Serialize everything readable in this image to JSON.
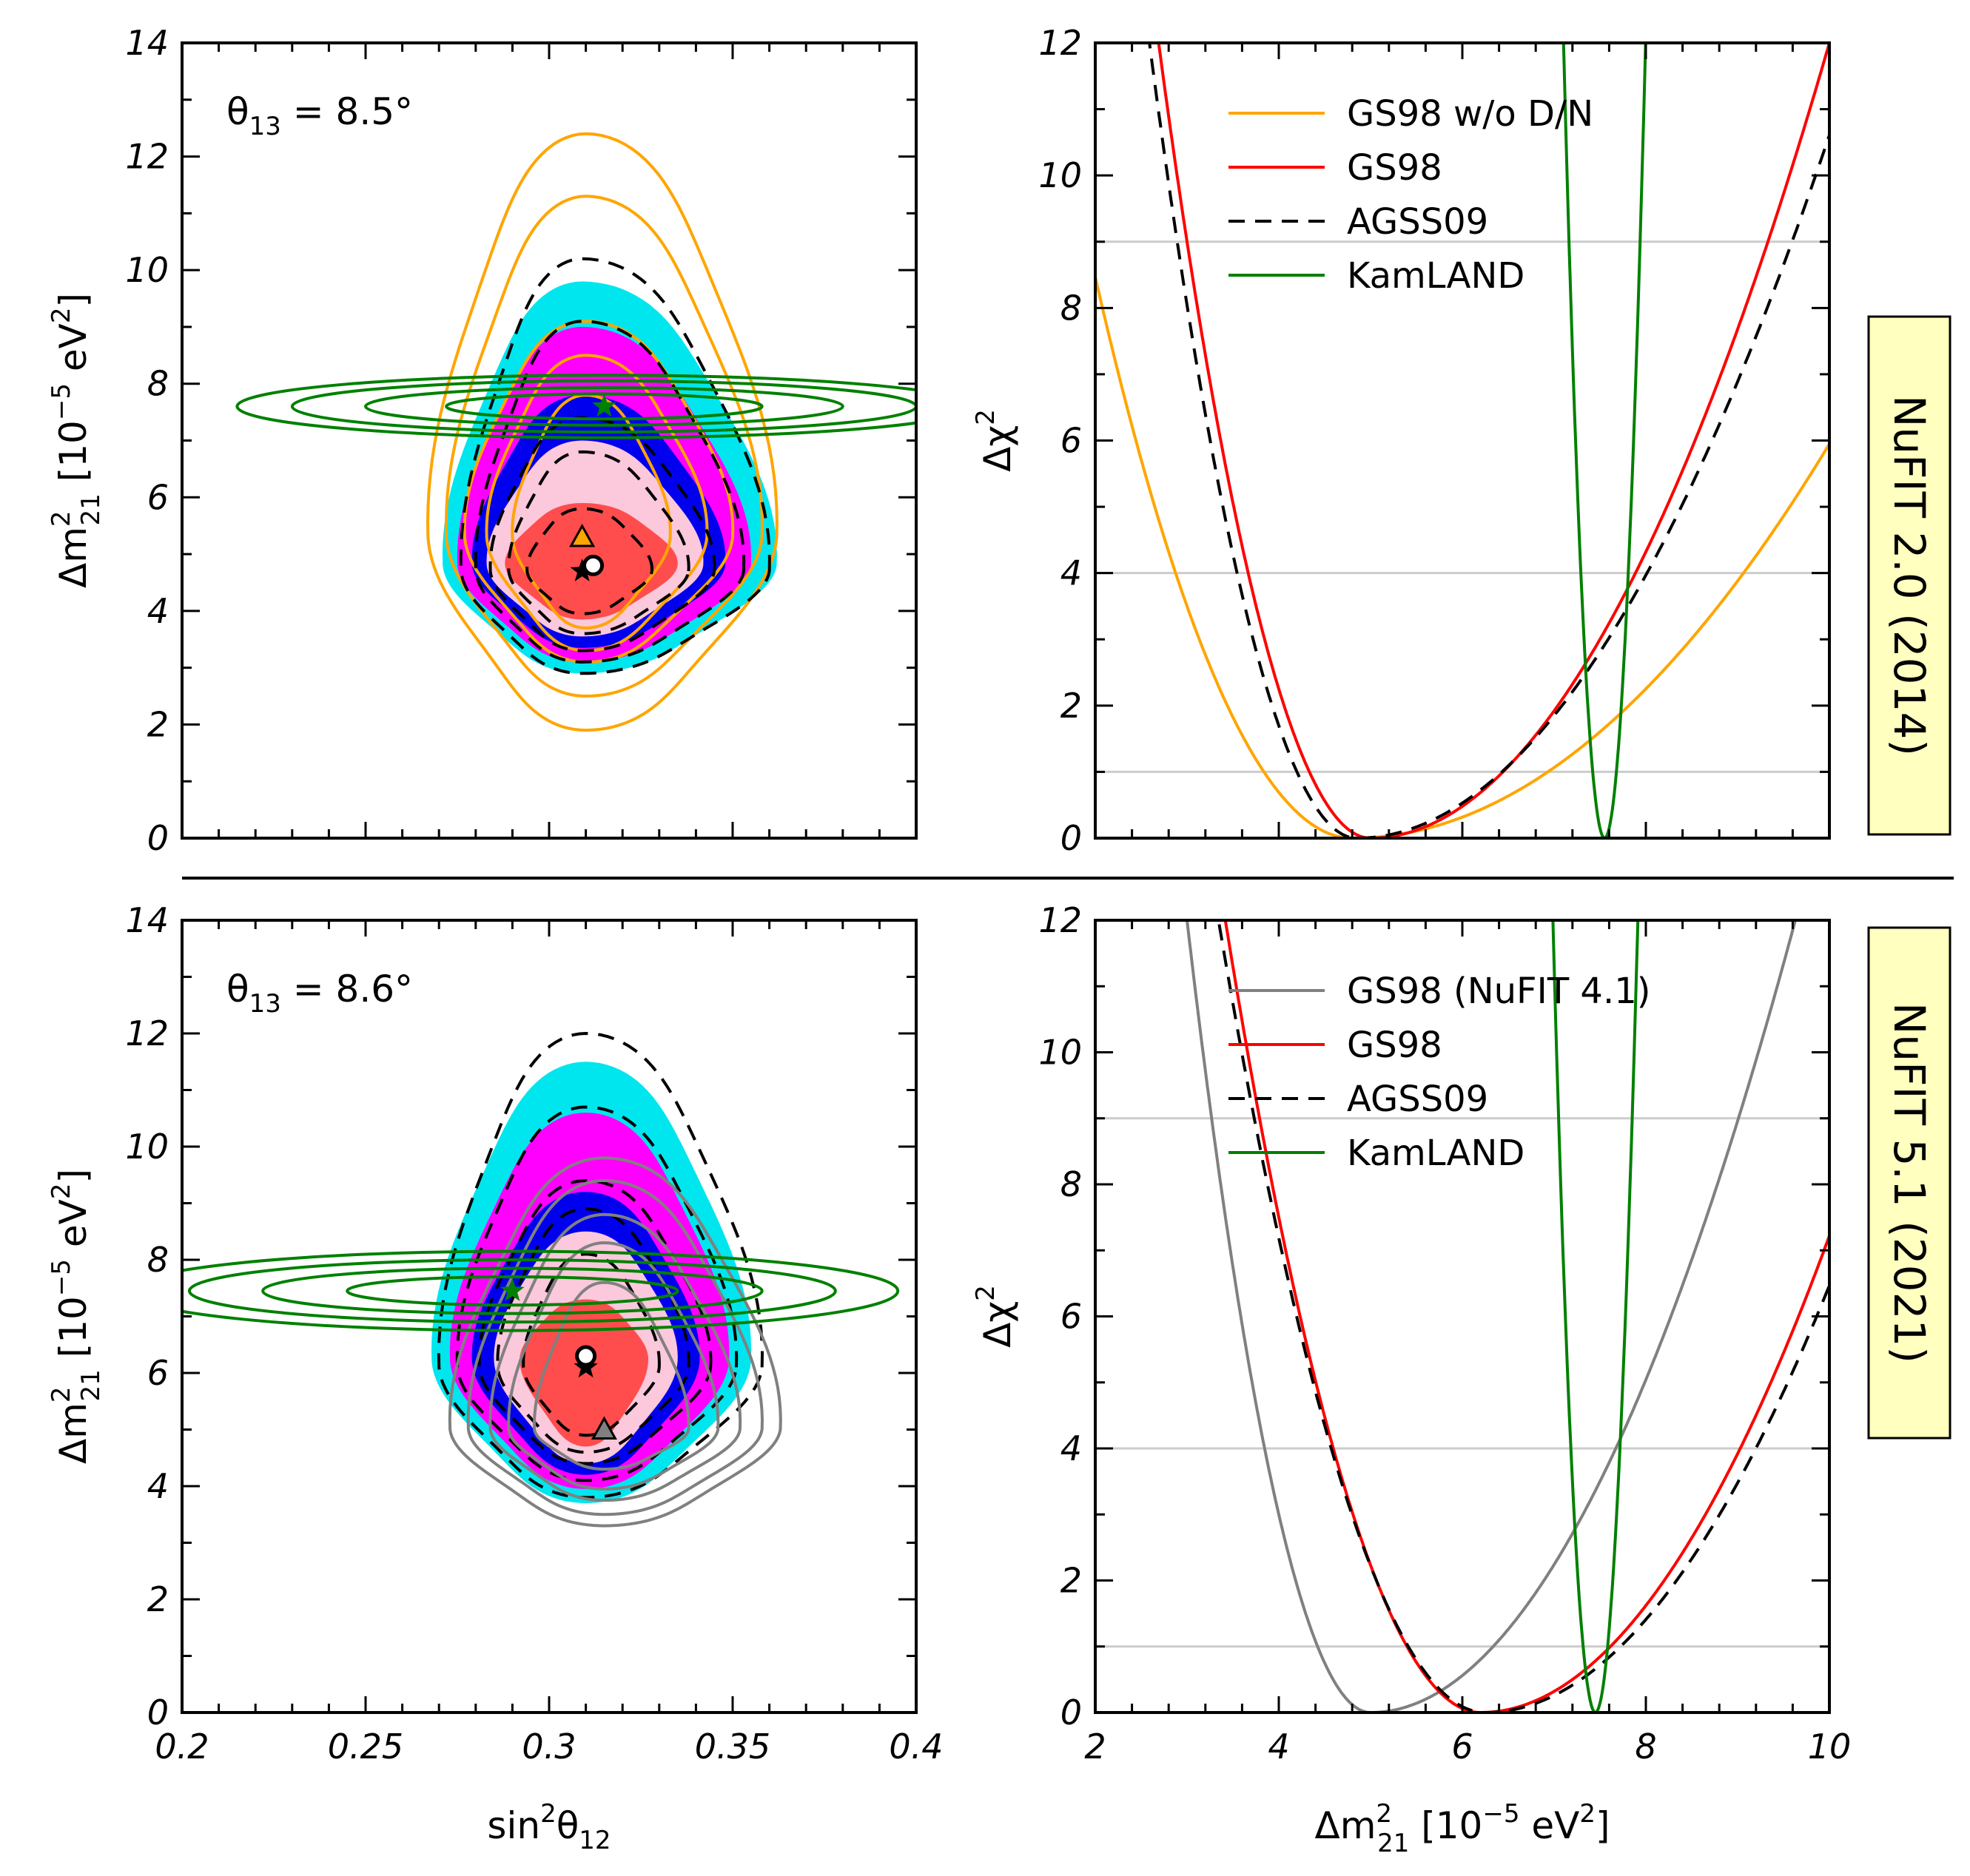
{
  "chart_data": [
    {
      "id": "contour-2014",
      "type": "contour",
      "annotation": {
        "theta": "θ",
        "sub": "13",
        "text": " = 8.5°"
      },
      "xlim": [
        0.2,
        0.4
      ],
      "ylim": [
        0,
        14
      ],
      "xticks": [
        0.2,
        0.25,
        0.3,
        0.35,
        0.4
      ],
      "yticks": [
        0,
        2,
        4,
        6,
        8,
        10,
        12,
        14
      ],
      "xlabel": {
        "pre": "sin",
        "sup": "2",
        "theta": "θ",
        "sub": "12"
      },
      "ylabel": {
        "pre": "Δm",
        "sup": "2",
        "sub": "21",
        "post": " [10",
        "sup2": "−5",
        "post2": " eV",
        "sup3": "2",
        "end": "]"
      },
      "fill_colors": [
        "#00e6ee",
        "#ff00ff",
        "#0000ee",
        "#fbc8dc",
        "#ff4d4d"
      ],
      "solar_region": {
        "center": [
          0.309,
          4.8
        ],
        "fill_top": [
          9.8,
          9.0,
          7.8,
          7.0,
          5.9
        ],
        "fill_bottom": [
          2.9,
          3.1,
          3.35,
          3.55,
          3.85
        ],
        "fill_left": [
          0.271,
          0.275,
          0.279,
          0.283,
          0.288
        ],
        "fill_right": [
          0.362,
          0.355,
          0.348,
          0.342,
          0.335
        ]
      },
      "series": [
        {
          "name": "GS98 w/o D/N",
          "color": "#ffa500",
          "style": "solid",
          "center": [
            0.31,
            5.3
          ],
          "contours": [
            {
              "top": 12.4,
              "bottom": 1.9,
              "left": 0.267,
              "right": 0.362
            },
            {
              "top": 11.3,
              "bottom": 2.5,
              "left": 0.272,
              "right": 0.358
            },
            {
              "top": 9.1,
              "bottom": 3.1,
              "left": 0.277,
              "right": 0.35
            },
            {
              "top": 8.5,
              "bottom": 3.3,
              "left": 0.283,
              "right": 0.343
            },
            {
              "top": 7.8,
              "bottom": 3.7,
              "left": 0.29,
              "right": 0.333
            }
          ],
          "bestfit_marker": {
            "type": "triangle",
            "x": 0.309,
            "y": 5.3
          }
        },
        {
          "name": "AGSS09",
          "color": "#000000",
          "style": "dashed",
          "center": [
            0.309,
            4.7
          ],
          "contours": [
            {
              "top": 10.2,
              "bottom": 2.9,
              "left": 0.276,
              "right": 0.36
            },
            {
              "top": 9.1,
              "bottom": 3.1,
              "left": 0.28,
              "right": 0.353
            },
            {
              "top": 7.4,
              "bottom": 3.3,
              "left": 0.284,
              "right": 0.345
            },
            {
              "top": 6.8,
              "bottom": 3.6,
              "left": 0.289,
              "right": 0.338
            },
            {
              "top": 5.8,
              "bottom": 3.95,
              "left": 0.294,
              "right": 0.328
            }
          ],
          "bestfit_marker": {
            "type": "star",
            "x": 0.309,
            "y": 4.7
          }
        },
        {
          "name": "KamLAND",
          "color": "#008000",
          "style": "solid",
          "center": [
            0.315,
            7.6
          ],
          "ellipses": [
            {
              "rx": 0.1,
              "ry": 0.55
            },
            {
              "rx": 0.085,
              "ry": 0.45
            },
            {
              "rx": 0.065,
              "ry": 0.33
            },
            {
              "rx": 0.043,
              "ry": 0.22
            }
          ],
          "bestfit_marker": {
            "type": "star",
            "x": 0.315,
            "y": 7.6
          }
        }
      ],
      "gs98_bestfit_marker": {
        "type": "circle",
        "x": 0.312,
        "y": 4.8
      }
    },
    {
      "id": "chi2-2014",
      "type": "line",
      "xlim": [
        2,
        10
      ],
      "ylim": [
        0,
        12
      ],
      "xticks": [
        2,
        4,
        6,
        8,
        10
      ],
      "yticks": [
        0,
        2,
        4,
        6,
        8,
        10,
        12
      ],
      "ylabel": {
        "pre": "Δχ",
        "sup": "2"
      },
      "hlines": [
        1,
        4,
        9
      ],
      "series": [
        {
          "name": "GS98 w/o D/N",
          "color": "#ffa500",
          "style": "solid",
          "min_x": 4.8,
          "left_curv": 1.08,
          "right_curv": 0.22
        },
        {
          "name": "GS98",
          "color": "#ff0000",
          "style": "solid",
          "min_x": 5.0,
          "left_curv": 2.25,
          "right_curv": 0.48
        },
        {
          "name": "AGSS09",
          "color": "#000000",
          "style": "dashed",
          "min_x": 4.85,
          "left_curv": 2.35,
          "right_curv": 0.4
        },
        {
          "name": "KamLAND",
          "color": "#008000",
          "style": "solid",
          "min_x": 7.55,
          "left_curv": 60,
          "right_curv": 60
        }
      ],
      "legend": [
        "GS98 w/o D/N",
        "GS98",
        "AGSS09",
        "KamLAND"
      ],
      "side_label": "NuFIT 2.0 (2014)"
    },
    {
      "id": "contour-2021",
      "type": "contour",
      "annotation": {
        "theta": "θ",
        "sub": "13",
        "text": " = 8.6°"
      },
      "xlim": [
        0.2,
        0.4
      ],
      "ylim": [
        0,
        14
      ],
      "xticks": [
        0.2,
        0.25,
        0.3,
        0.35,
        0.4
      ],
      "xticklabels": [
        "0.2",
        "0.25",
        "0.3",
        "0.35",
        "0.4"
      ],
      "yticks": [
        0,
        2,
        4,
        6,
        8,
        10,
        12,
        14
      ],
      "xlabel": {
        "pre": "sin",
        "sup": "2",
        "theta": "θ",
        "sub": "12"
      },
      "ylabel": {
        "pre": "Δm",
        "sup": "2",
        "sub": "21",
        "post": " [10",
        "sup2": "−5",
        "post2": " eV",
        "sup3": "2",
        "end": "]"
      },
      "fill_colors": [
        "#00e6ee",
        "#ff00ff",
        "#0000ee",
        "#fbc8dc",
        "#ff4d4d"
      ],
      "solar_region": {
        "center": [
          0.31,
          6.2
        ],
        "fill_top": [
          11.5,
          10.6,
          9.2,
          8.5,
          7.3
        ],
        "fill_bottom": [
          3.7,
          3.95,
          4.2,
          4.4,
          4.7
        ],
        "fill_left": [
          0.268,
          0.273,
          0.279,
          0.285,
          0.292
        ],
        "fill_right": [
          0.355,
          0.349,
          0.341,
          0.335,
          0.327
        ]
      },
      "series": [
        {
          "name": "AGSS09",
          "color": "#000000",
          "style": "dashed",
          "center": [
            0.31,
            6.1
          ],
          "contours": [
            {
              "top": 12.0,
              "bottom": 3.8,
              "left": 0.27,
              "right": 0.358
            },
            {
              "top": 10.7,
              "bottom": 4.1,
              "left": 0.275,
              "right": 0.351
            },
            {
              "top": 9.4,
              "bottom": 4.4,
              "left": 0.281,
              "right": 0.344
            },
            {
              "top": 8.9,
              "bottom": 4.6,
              "left": 0.286,
              "right": 0.338
            },
            {
              "top": 8.1,
              "bottom": 4.9,
              "left": 0.293,
              "right": 0.33
            }
          ],
          "bestfit_marker": {
            "type": "star",
            "x": 0.31,
            "y": 6.1
          }
        },
        {
          "name": "GS98 (NuFIT 4.1)",
          "color": "#808080",
          "style": "solid",
          "center": [
            0.315,
            5.0
          ],
          "contours": [
            {
              "top": 9.8,
              "bottom": 3.3,
              "left": 0.273,
              "right": 0.363
            },
            {
              "top": 9.4,
              "bottom": 3.5,
              "left": 0.278,
              "right": 0.358
            },
            {
              "top": 8.8,
              "bottom": 3.75,
              "left": 0.284,
              "right": 0.352
            },
            {
              "top": 8.3,
              "bottom": 3.95,
              "left": 0.289,
              "right": 0.346
            },
            {
              "top": 7.6,
              "bottom": 4.3,
              "left": 0.296,
              "right": 0.338
            }
          ],
          "bestfit_marker": {
            "type": "triangle",
            "x": 0.315,
            "y": 5.0
          }
        },
        {
          "name": "KamLAND",
          "color": "#008000",
          "style": "solid",
          "center": [
            0.29,
            7.45
          ],
          "ellipses": [
            {
              "rx": 0.105,
              "ry": 0.7
            },
            {
              "rx": 0.088,
              "ry": 0.55
            },
            {
              "rx": 0.068,
              "ry": 0.4
            },
            {
              "rx": 0.045,
              "ry": 0.25
            }
          ],
          "bestfit_marker": {
            "type": "star",
            "x": 0.29,
            "y": 7.45
          }
        }
      ],
      "gs98_bestfit_marker": {
        "type": "circle",
        "x": 0.31,
        "y": 6.3
      }
    },
    {
      "id": "chi2-2021",
      "type": "line",
      "xlim": [
        2,
        10
      ],
      "ylim": [
        0,
        12
      ],
      "xticks": [
        2,
        4,
        6,
        8,
        10
      ],
      "xticklabels": [
        "2",
        "4",
        "6",
        "8",
        "10"
      ],
      "yticks": [
        0,
        2,
        4,
        6,
        8,
        10,
        12
      ],
      "xlabel": {
        "pre": "Δm",
        "sup": "2",
        "sub": "21",
        "post": " [10",
        "sup2": "−5",
        "post2": " eV",
        "sup3": "2",
        "end": "]"
      },
      "ylabel": {
        "pre": "Δχ",
        "sup": "2"
      },
      "hlines": [
        1,
        4,
        9
      ],
      "series": [
        {
          "name": "GS98 (NuFIT 4.1)",
          "color": "#808080",
          "style": "solid",
          "min_x": 5.0,
          "left_curv": 3.0,
          "right_curv": 0.56
        },
        {
          "name": "GS98",
          "color": "#ff0000",
          "style": "solid",
          "min_x": 6.2,
          "left_curv": 1.55,
          "right_curv": 0.5
        },
        {
          "name": "AGSS09",
          "color": "#000000",
          "style": "dashed",
          "min_x": 6.25,
          "left_curv": 1.42,
          "right_curv": 0.46
        },
        {
          "name": "KamLAND",
          "color": "#008000",
          "style": "solid",
          "min_x": 7.45,
          "left_curv": 56,
          "right_curv": 56
        }
      ],
      "legend": [
        "GS98 (NuFIT 4.1)",
        "GS98",
        "AGSS09",
        "KamLAND"
      ],
      "side_label": "NuFIT 5.1 (2021)"
    }
  ]
}
